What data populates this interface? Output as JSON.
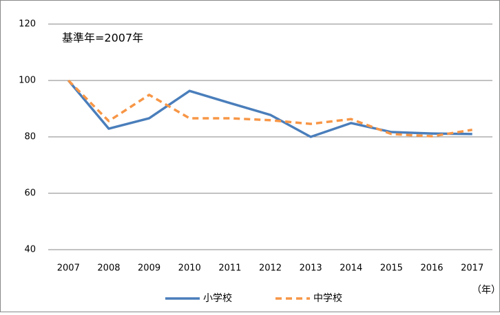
{
  "chart_data": {
    "type": "line",
    "annotation": "基準年=2007年",
    "x_unit_label": "（年）",
    "categories": [
      "2007",
      "2008",
      "2009",
      "2010",
      "2011",
      "2012",
      "2013",
      "2014",
      "2015",
      "2016",
      "2017"
    ],
    "series": [
      {
        "name": "小学校",
        "color": "#4a7ebb",
        "dashed": false,
        "values": [
          100,
          82.9,
          86.6,
          96.3,
          92,
          87.8,
          80,
          84.9,
          81.7,
          81.2,
          81
        ]
      },
      {
        "name": "中学校",
        "color": "#f79646",
        "dashed": true,
        "values": [
          100,
          85.6,
          94.9,
          86.6,
          86.6,
          85.9,
          84.6,
          86.3,
          81,
          80.2,
          82.5
        ]
      }
    ],
    "ylim": [
      40,
      120
    ],
    "yticks": [
      40,
      60,
      80,
      100,
      120
    ],
    "grid": true
  }
}
